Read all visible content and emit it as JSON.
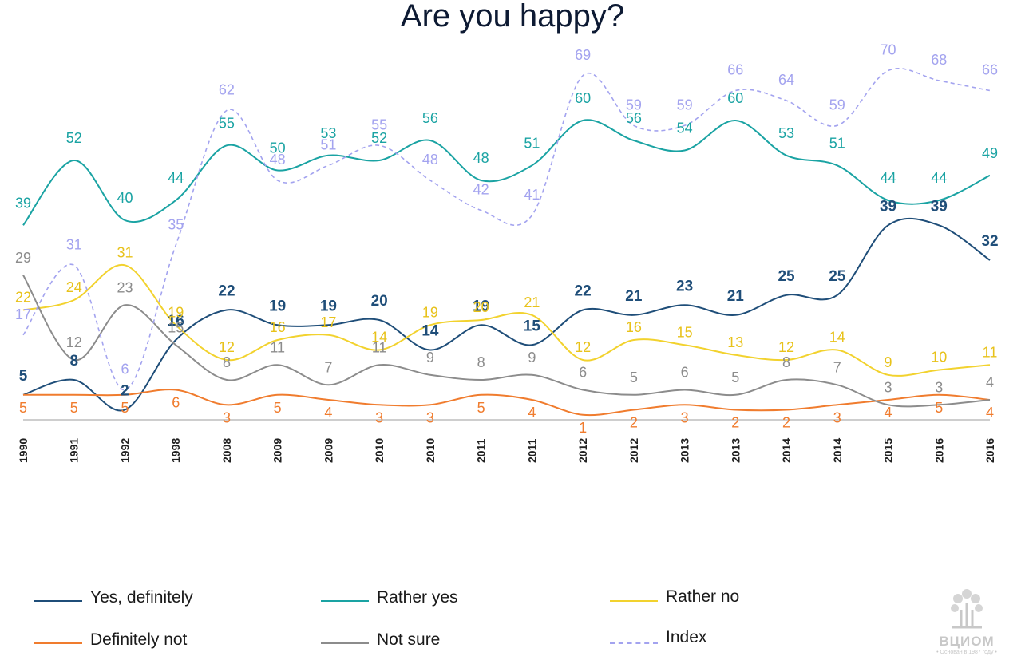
{
  "chart_data": {
    "type": "line",
    "title": "Are you happy?",
    "categories": [
      "1990",
      "1991",
      "1992",
      "1998",
      "2008",
      "2009",
      "2009",
      "2010",
      "2010",
      "2011",
      "2011",
      "2012",
      "2012",
      "2013",
      "2013",
      "2014",
      "2014",
      "2015",
      "2016",
      "2016"
    ],
    "ylim": [
      0,
      75
    ],
    "grid": false,
    "legend_position": "bottom",
    "series": [
      {
        "name": "Yes, definitely",
        "color": "#1f4e79",
        "style": "solid",
        "values": [
          5,
          8,
          2,
          16,
          22,
          19,
          19,
          20,
          14,
          19,
          15,
          22,
          21,
          23,
          21,
          25,
          25,
          39,
          39,
          32
        ]
      },
      {
        "name": "Rather yes",
        "color": "#1aa3a3",
        "style": "solid",
        "values": [
          39,
          52,
          40,
          44,
          55,
          50,
          53,
          52,
          56,
          48,
          51,
          60,
          56,
          54,
          60,
          53,
          51,
          44,
          44,
          49
        ]
      },
      {
        "name": "Rather no",
        "color": "#f2d22e",
        "style": "solid",
        "values": [
          22,
          24,
          31,
          19,
          12,
          16,
          17,
          14,
          19,
          20,
          21,
          12,
          16,
          15,
          13,
          12,
          14,
          9,
          10,
          11
        ]
      },
      {
        "name": "Definitely not",
        "color": "#f07c2e",
        "style": "solid",
        "values": [
          5,
          5,
          5,
          6,
          3,
          5,
          4,
          3,
          3,
          5,
          4,
          1,
          2,
          3,
          2,
          2,
          3,
          4,
          5,
          4
        ]
      },
      {
        "name": "Not sure",
        "color": "#8c8c8c",
        "style": "solid",
        "values": [
          29,
          12,
          23,
          15,
          8,
          11,
          7,
          11,
          9,
          8,
          9,
          6,
          5,
          6,
          5,
          8,
          7,
          3,
          3,
          4
        ]
      },
      {
        "name": "Index",
        "color": "#a3a3ef",
        "style": "dashed",
        "values": [
          17,
          31,
          6,
          35,
          62,
          48,
          51,
          55,
          48,
          42,
          41,
          69,
          59,
          59,
          66,
          64,
          59,
          70,
          68,
          66
        ]
      }
    ]
  },
  "logo": {
    "name": "ВЦИОМ",
    "tagline": "• Основан в 1987 году •"
  }
}
